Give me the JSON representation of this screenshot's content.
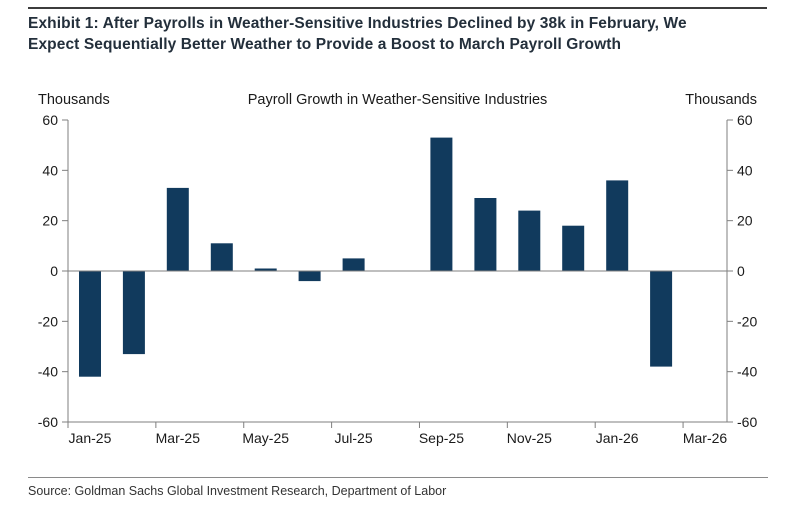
{
  "page": {
    "exhibit_title_lines": [
      "Exhibit 1: After Payrolls in Weather-Sensitive Industries Declined by 38k in February, We",
      "Expect Sequentially Better Weather to Provide a Boost to March Payroll Growth"
    ],
    "exhibit_title_full": "Exhibit 1: After Payrolls in Weather-Sensitive Industries Declined by 38k in February, We Expect Sequentially Better Weather to Provide a Boost to March Payroll Growth",
    "source_line": "Source: Goldman Sachs Global Investment Research, Department of Labor"
  },
  "chart_data": {
    "type": "bar",
    "title": "Payroll Growth in Weather-Sensitive Industries",
    "left_axis_label": "Thousands",
    "right_axis_label": "Thousands",
    "categories": [
      "Jan-25",
      "Feb-25",
      "Mar-25",
      "Apr-25",
      "May-25",
      "Jun-25",
      "Jul-25",
      "Aug-25",
      "Sep-25",
      "Oct-25",
      "Nov-25",
      "Dec-25",
      "Jan-26",
      "Feb-26",
      "Mar-26"
    ],
    "values": [
      -42,
      -33,
      33,
      11,
      1,
      -4,
      5,
      0,
      53,
      29,
      24,
      18,
      36,
      -38,
      null
    ],
    "xtick_labels": [
      "Jan-25",
      "Mar-25",
      "May-25",
      "Jul-25",
      "Sep-25",
      "Nov-25",
      "Jan-26",
      "Mar-26"
    ],
    "yticks": [
      60,
      40,
      20,
      0,
      -20,
      -40,
      -60
    ],
    "ylim": [
      -60,
      60
    ],
    "grid": false,
    "legend": "none",
    "bar_color": "#113a5d",
    "axis_color": "#7f7f7f",
    "text_color": "#1a1a1a"
  }
}
